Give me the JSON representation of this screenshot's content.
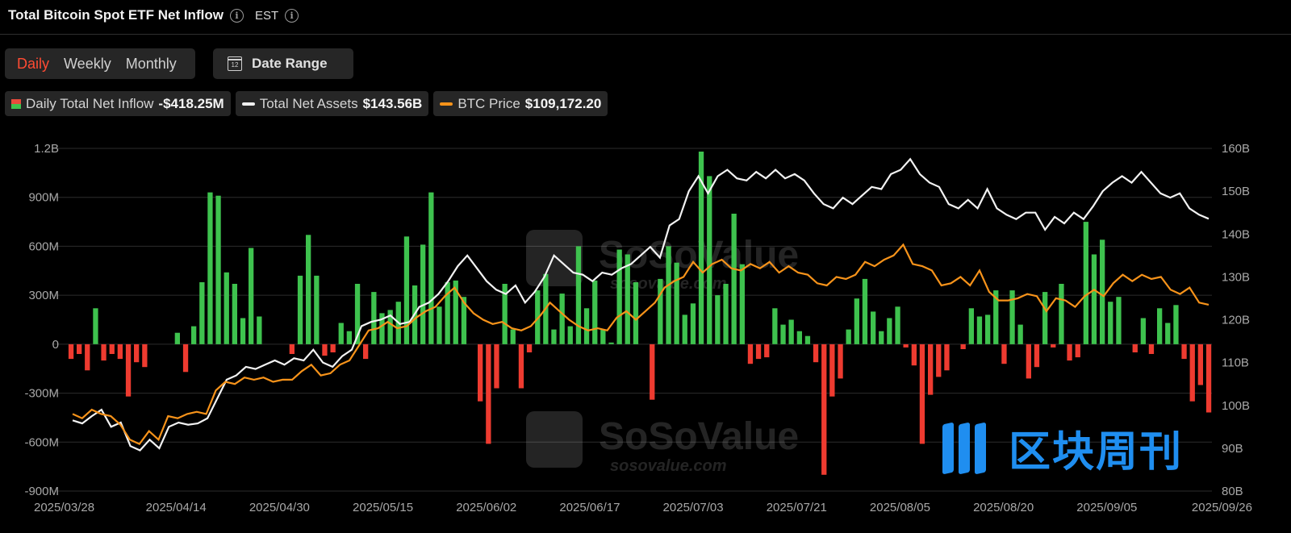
{
  "header": {
    "title": "Total Bitcoin Spot ETF Net Inflow",
    "timezone": "EST"
  },
  "periods": [
    "Daily",
    "Weekly",
    "Monthly"
  ],
  "active_period": "Daily",
  "date_range": {
    "label": "Date Range",
    "icon_text": "12"
  },
  "legend": [
    {
      "name": "Daily Total Net Inflow",
      "value": "-$418.25M"
    },
    {
      "name": "Total Net Assets",
      "value": "$143.56B"
    },
    {
      "name": "BTC Price",
      "value": "$109,172.20"
    }
  ],
  "watermark": {
    "brand": "SoSoValue",
    "url": "sosovalue.com",
    "cn_brand": "区块周刊"
  },
  "colors": {
    "inflow_positive": "#3ec24e",
    "inflow_negative": "#ee3b30",
    "net_assets": "#ffffff",
    "btc_price": "#f7931a",
    "active_tab": "#ff4b33"
  },
  "chart_data": {
    "type": "bar",
    "title": "Total Bitcoin Spot ETF Net Inflow",
    "left_axis": {
      "ticks": [
        "1.2B",
        "900M",
        "600M",
        "300M",
        "0",
        "-300M",
        "-600M",
        "-900M"
      ],
      "range": [
        -900,
        1200
      ],
      "unit": "M"
    },
    "right_axis": {
      "ticks": [
        "160B",
        "150B",
        "140B",
        "130B",
        "120B",
        "110B",
        "100B",
        "90B",
        "80B"
      ],
      "range": [
        80,
        160
      ],
      "unit": "B"
    },
    "x_tick_labels": [
      "2025/03/28",
      "2025/04/14",
      "2025/04/30",
      "2025/05/15",
      "2025/06/02",
      "2025/06/17",
      "2025/07/03",
      "2025/07/21",
      "2025/08/05",
      "2025/08/20",
      "2025/09/05",
      "2025/09/26"
    ],
    "grid": "horizontal",
    "series": [
      {
        "name": "Daily Total Net Inflow",
        "type": "bar",
        "axis": "left",
        "values": [
          -90,
          -60,
          -160,
          220,
          -100,
          -60,
          -90,
          -320,
          -110,
          -140,
          0,
          0,
          0,
          70,
          -170,
          110,
          380,
          930,
          910,
          440,
          370,
          160,
          590,
          170,
          0,
          0,
          0,
          -60,
          420,
          670,
          420,
          -70,
          -50,
          130,
          80,
          370,
          -90,
          320,
          190,
          210,
          260,
          660,
          360,
          610,
          930,
          230,
          380,
          390,
          290,
          0,
          -350,
          -610,
          -270,
          370,
          90,
          -270,
          -50,
          330,
          430,
          90,
          310,
          110,
          600,
          220,
          390,
          90,
          10,
          580,
          550,
          380,
          0,
          -340,
          400,
          600,
          500,
          180,
          250,
          1180,
          1030,
          300,
          370,
          800,
          490,
          -120,
          -90,
          -80,
          220,
          120,
          150,
          80,
          50,
          -110,
          -800,
          -320,
          -210,
          90,
          280,
          400,
          200,
          80,
          160,
          230,
          -20,
          -130,
          -610,
          -310,
          -200,
          -160,
          0,
          -30,
          220,
          170,
          180,
          330,
          -120,
          330,
          120,
          -210,
          -140,
          320,
          -20,
          370,
          -100,
          -80,
          750,
          550,
          640,
          260,
          290,
          0,
          -50,
          160,
          -60,
          220,
          130,
          240,
          -90,
          -350,
          -250,
          -418
        ],
        "labels_range": [
          "2025/03/28",
          "2025/09/26"
        ]
      },
      {
        "name": "Total Net Assets",
        "type": "line",
        "axis": "right",
        "values": [
          96.5,
          95.8,
          97.5,
          99.0,
          95.0,
          96.0,
          90.5,
          89.5,
          92.0,
          90.0,
          95.0,
          96.0,
          95.5,
          95.8,
          97.0,
          101.5,
          106.0,
          107.0,
          109.0,
          108.5,
          109.5,
          110.5,
          109.5,
          111.0,
          110.5,
          113.0,
          110.0,
          109.0,
          111.5,
          113.0,
          118.5,
          119.5,
          120.0,
          121.0,
          119.0,
          119.5,
          123.0,
          124.0,
          126.0,
          129.0,
          132.5,
          135.0,
          132.0,
          129.0,
          127.0,
          126.0,
          128.0,
          124.0,
          126.5,
          130.0,
          135.0,
          133.0,
          131.0,
          130.5,
          129.0,
          131.0,
          130.5,
          132.0,
          133.0,
          135.0,
          137.0,
          134.5,
          142.0,
          143.5,
          150.0,
          153.5,
          149.5,
          153.5,
          155.0,
          153.0,
          152.5,
          154.5,
          153.0,
          155.0,
          153.0,
          154.0,
          152.5,
          149.5,
          147.0,
          146.0,
          148.5,
          147.0,
          149.0,
          151.0,
          150.5,
          154.0,
          155.0,
          157.5,
          154.0,
          152.0,
          151.0,
          147.0,
          146.0,
          148.0,
          146.0,
          150.5,
          146.0,
          144.5,
          143.5,
          145.0,
          145.0,
          141.0,
          144.0,
          142.5,
          145.0,
          143.5,
          146.5,
          150.0,
          152.0,
          153.5,
          152.0,
          154.5,
          152.0,
          149.5,
          148.5,
          149.5,
          146.0,
          144.5,
          143.56
        ]
      },
      {
        "name": "BTC Price",
        "type": "line",
        "axis": "right",
        "values": [
          98.0,
          97.0,
          99.0,
          98.0,
          97.5,
          95.5,
          92.0,
          91.0,
          94.0,
          92.0,
          97.5,
          97.0,
          98.0,
          98.5,
          98.0,
          103.5,
          105.5,
          105.0,
          106.5,
          106.0,
          106.5,
          105.5,
          106.0,
          106.0,
          108.0,
          109.5,
          107.0,
          107.5,
          109.5,
          110.5,
          114.0,
          117.5,
          118.0,
          119.5,
          118.0,
          118.5,
          120.5,
          122.0,
          123.0,
          125.5,
          127.5,
          124.0,
          121.5,
          120.0,
          119.0,
          119.5,
          118.0,
          117.5,
          118.5,
          121.0,
          124.0,
          122.0,
          120.0,
          118.5,
          117.5,
          118.0,
          117.5,
          120.5,
          122.0,
          120.0,
          122.0,
          124.0,
          127.5,
          129.0,
          130.0,
          133.5,
          131.0,
          133.0,
          134.0,
          132.0,
          131.5,
          133.0,
          132.0,
          133.5,
          131.0,
          132.5,
          131.0,
          130.5,
          128.5,
          128.0,
          130.0,
          129.5,
          130.5,
          133.5,
          132.5,
          134.0,
          135.0,
          137.5,
          133.0,
          132.5,
          131.5,
          128.0,
          128.5,
          130.0,
          128.0,
          131.5,
          126.5,
          124.5,
          124.5,
          125.0,
          126.0,
          125.5,
          122.0,
          125.0,
          124.5,
          123.0,
          125.5,
          127.0,
          125.5,
          128.5,
          130.5,
          129.0,
          130.5,
          129.5,
          130.0,
          127.0,
          126.0,
          127.5,
          124.0,
          123.5
        ]
      }
    ]
  }
}
